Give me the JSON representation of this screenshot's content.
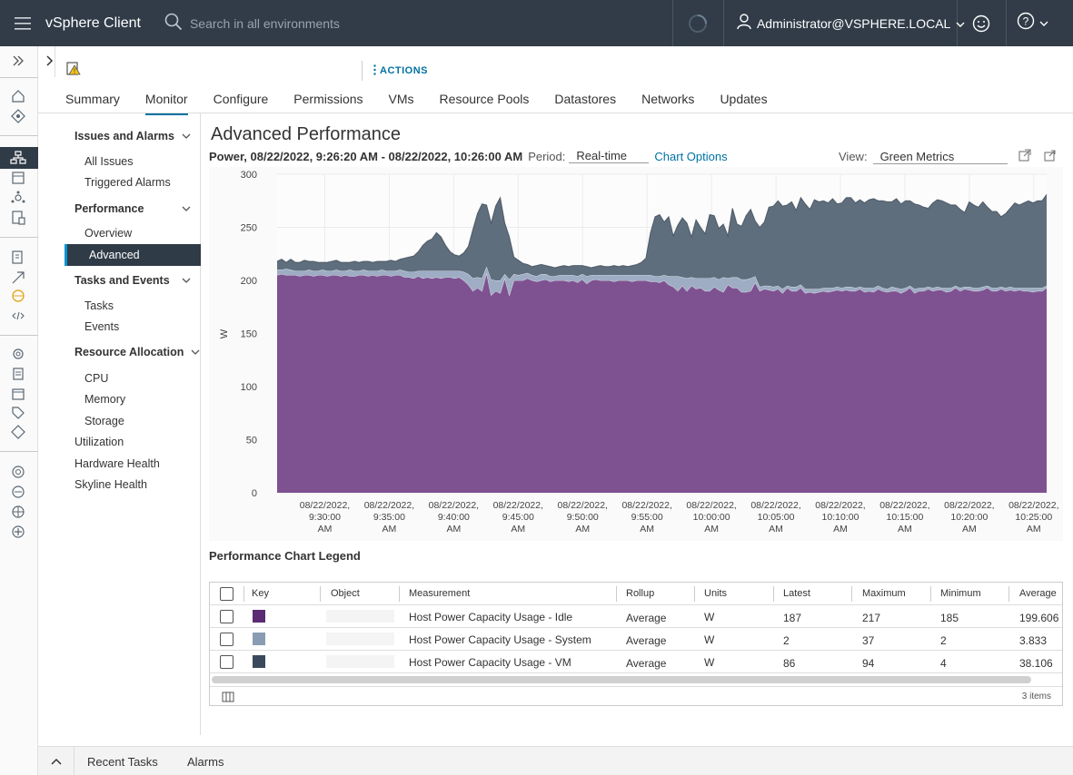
{
  "header": {
    "brand": "vSphere Client",
    "search_placeholder": "Search in all environments",
    "user": "Administrator@VSPHERE.LOCAL"
  },
  "object_header": {
    "actions_label": "ACTIONS",
    "tabs": [
      "Summary",
      "Monitor",
      "Configure",
      "Permissions",
      "VMs",
      "Resource Pools",
      "Datastores",
      "Networks",
      "Updates"
    ],
    "active_tab": "Monitor"
  },
  "subnav": {
    "issues_group": "Issues and Alarms",
    "all_issues": "All Issues",
    "triggered_alarms": "Triggered Alarms",
    "performance_group": "Performance",
    "overview": "Overview",
    "advanced": "Advanced",
    "tasks_group": "Tasks and Events",
    "tasks": "Tasks",
    "events": "Events",
    "resource_group": "Resource Allocation",
    "cpu": "CPU",
    "memory": "Memory",
    "storage": "Storage",
    "utilization": "Utilization",
    "hardware_health": "Hardware Health",
    "skyline_health": "Skyline Health"
  },
  "main": {
    "title": "Advanced Performance",
    "chart_heading": "Power, 08/22/2022, 9:26:20 AM - 08/22/2022, 10:26:00 AM",
    "period_label": "Period:",
    "period_value": "Real-time",
    "chart_options": "Chart Options",
    "view_label": "View:",
    "view_value": "Green Metrics"
  },
  "chart_data": {
    "type": "area",
    "stacked": true,
    "ylabel": "W",
    "ylim": [
      0,
      300
    ],
    "yticks": [
      0,
      50,
      100,
      150,
      200,
      250,
      300
    ],
    "xlim_minutes": [
      -3.7,
      56
    ],
    "xticks": [
      {
        "label1": "08/22/2022,",
        "label2": "9:30:00",
        "label3": "AM"
      },
      {
        "label1": "08/22/2022,",
        "label2": "9:35:00",
        "label3": "AM"
      },
      {
        "label1": "08/22/2022,",
        "label2": "9:40:00",
        "label3": "AM"
      },
      {
        "label1": "08/22/2022,",
        "label2": "9:45:00",
        "label3": "AM"
      },
      {
        "label1": "08/22/2022,",
        "label2": "9:50:00",
        "label3": "AM"
      },
      {
        "label1": "08/22/2022,",
        "label2": "9:55:00",
        "label3": "AM"
      },
      {
        "label1": "08/22/2022,",
        "label2": "10:00:00",
        "label3": "AM"
      },
      {
        "label1": "08/22/2022,",
        "label2": "10:05:00",
        "label3": "AM"
      },
      {
        "label1": "08/22/2022,",
        "label2": "10:10:00",
        "label3": "AM"
      },
      {
        "label1": "08/22/2022,",
        "label2": "10:15:00",
        "label3": "AM"
      },
      {
        "label1": "08/22/2022,",
        "label2": "10:20:00",
        "label3": "AM"
      },
      {
        "label1": "08/22/2022,",
        "label2": "10:25:00",
        "label3": "AM"
      }
    ],
    "series": [
      {
        "name": "Host Power Capacity Usage - Idle",
        "color": "#7e5291",
        "values": [
          205,
          206,
          205,
          205,
          205,
          204,
          205,
          205,
          204,
          205,
          205,
          204,
          205,
          205,
          204,
          205,
          204,
          204,
          205,
          205,
          204,
          205,
          204,
          205,
          205,
          204,
          205,
          205,
          203,
          203,
          202,
          204,
          202,
          203,
          202,
          203,
          202,
          203,
          203,
          202,
          203,
          200,
          196,
          190,
          193,
          190,
          207,
          186,
          190,
          188,
          202,
          186,
          200,
          200,
          200,
          202,
          200,
          199,
          200,
          201,
          199,
          200,
          200,
          200,
          199,
          200,
          198,
          201,
          197,
          200,
          201,
          200,
          200,
          200,
          199,
          200,
          200,
          200,
          199,
          200,
          200,
          200,
          199,
          199,
          198,
          200,
          196,
          194,
          190,
          195,
          190,
          195,
          192,
          193,
          190,
          190,
          194,
          191,
          189,
          196,
          193,
          193,
          189,
          189,
          190,
          198,
          190,
          192,
          191,
          190,
          192,
          188,
          193,
          190,
          190,
          193,
          188,
          189,
          188,
          189,
          190,
          189,
          190,
          191,
          190,
          191,
          190,
          190,
          192,
          189,
          190,
          189,
          192,
          190,
          189,
          190,
          190,
          188,
          190,
          193,
          188,
          190,
          190,
          192,
          190,
          191,
          191,
          189,
          190,
          193,
          190,
          192,
          191,
          190,
          190,
          191,
          193,
          190,
          190,
          192,
          190,
          191,
          190,
          191,
          190,
          190,
          189,
          190,
          190,
          193
        ]
      },
      {
        "name": "Host Power Capacity Usage - System",
        "color": "#9eadc4",
        "values": [
          5,
          4,
          6,
          5,
          4,
          5,
          4,
          5,
          5,
          4,
          5,
          5,
          4,
          5,
          5,
          4,
          6,
          5,
          4,
          5,
          5,
          4,
          5,
          5,
          4,
          5,
          4,
          5,
          6,
          5,
          6,
          5,
          7,
          6,
          7,
          6,
          7,
          6,
          6,
          7,
          6,
          8,
          10,
          12,
          10,
          12,
          6,
          15,
          10,
          12,
          4,
          15,
          6,
          5,
          6,
          5,
          5,
          5,
          6,
          5,
          5,
          4,
          5,
          5,
          6,
          5,
          6,
          5,
          7,
          5,
          4,
          5,
          5,
          5,
          6,
          5,
          5,
          5,
          6,
          5,
          5,
          5,
          6,
          5,
          6,
          5,
          8,
          10,
          14,
          8,
          12,
          8,
          10,
          9,
          12,
          12,
          9,
          10,
          14,
          6,
          10,
          10,
          12,
          12,
          12,
          6,
          4,
          3,
          4,
          4,
          3,
          4,
          2,
          4,
          4,
          3,
          4,
          3,
          4,
          3,
          3,
          4,
          3,
          3,
          3,
          3,
          4,
          3,
          2,
          4,
          3,
          4,
          3,
          3,
          3,
          4,
          3,
          4,
          3,
          2,
          4,
          3,
          3,
          2,
          3,
          3,
          2,
          4,
          3,
          2,
          3,
          2,
          3,
          3,
          3,
          3,
          2,
          3,
          3,
          2,
          3,
          3,
          3,
          2,
          3,
          3,
          4,
          3,
          3,
          2
        ]
      },
      {
        "name": "Host Power Capacity Usage - VM",
        "color": "#5f6e7d",
        "values": [
          8,
          10,
          6,
          10,
          8,
          8,
          10,
          8,
          9,
          8,
          7,
          8,
          9,
          9,
          8,
          8,
          7,
          9,
          8,
          8,
          9,
          8,
          9,
          8,
          9,
          10,
          9,
          10,
          12,
          14,
          15,
          18,
          24,
          28,
          30,
          36,
          32,
          24,
          18,
          15,
          14,
          18,
          26,
          46,
          60,
          70,
          58,
          53,
          70,
          78,
          48,
          40,
          16,
          14,
          10,
          8,
          8,
          10,
          9,
          8,
          9,
          8,
          8,
          9,
          8,
          9,
          10,
          8,
          9,
          7,
          8,
          9,
          8,
          8,
          9,
          8,
          9,
          8,
          9,
          10,
          12,
          16,
          40,
          56,
          58,
          50,
          56,
          38,
          48,
          56,
          52,
          38,
          55,
          48,
          42,
          60,
          58,
          48,
          50,
          40,
          65,
          50,
          50,
          60,
          65,
          52,
          56,
          60,
          74,
          76,
          80,
          78,
          76,
          80,
          72,
          82,
          80,
          75,
          84,
          82,
          82,
          80,
          84,
          78,
          80,
          84,
          84,
          80,
          82,
          80,
          83,
          84,
          80,
          82,
          82,
          80,
          84,
          80,
          82,
          80,
          80,
          78,
          76,
          74,
          80,
          82,
          82,
          80,
          78,
          76,
          74,
          70,
          80,
          78,
          76,
          80,
          74,
          72,
          72,
          66,
          70,
          74,
          80,
          78,
          80,
          82,
          80,
          82,
          82,
          86
        ]
      }
    ]
  },
  "legend": {
    "title": "Performance Chart Legend",
    "columns": [
      "Key",
      "Object",
      "Measurement",
      "Rollup",
      "Units",
      "Latest",
      "Maximum",
      "Minimum",
      "Average"
    ],
    "rows": [
      {
        "color": "#5b2b73",
        "measurement": "Host Power Capacity Usage - Idle",
        "rollup": "Average",
        "units": "W",
        "latest": "187",
        "maximum": "217",
        "minimum": "185",
        "average": "199.606"
      },
      {
        "color": "#8a9cb3",
        "measurement": "Host Power Capacity Usage - System",
        "rollup": "Average",
        "units": "W",
        "latest": "2",
        "maximum": "37",
        "minimum": "2",
        "average": "3.833"
      },
      {
        "color": "#3a4a5c",
        "measurement": "Host Power Capacity Usage - VM",
        "rollup": "Average",
        "units": "W",
        "latest": "86",
        "maximum": "94",
        "minimum": "4",
        "average": "38.106"
      }
    ],
    "footer_count": "3 items"
  },
  "bottom": {
    "recent_tasks": "Recent Tasks",
    "alarms": "Alarms"
  }
}
